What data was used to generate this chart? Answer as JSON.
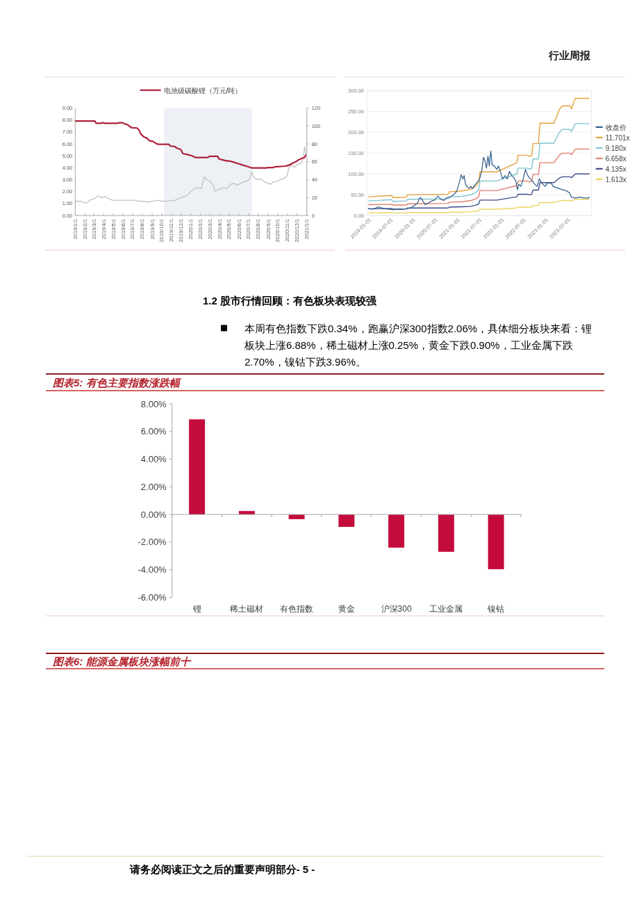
{
  "chart_data": [
    {
      "type": "other",
      "annotations": [
        "行业周报"
      ]
    },
    {
      "type": "line",
      "xlim": [
        "2019-01-01",
        "2021-01-01"
      ],
      "xticks": [
        {
          "value": "2019-01-01",
          "label": "2019/1/1"
        },
        {
          "value": "2019-02-01",
          "label": "2019/2/1"
        },
        {
          "value": "2019-03-01",
          "label": "2019/3/1"
        },
        {
          "value": "2019-04-01",
          "label": "2019/4/1"
        },
        {
          "value": "2019-05-01",
          "label": "2019/5/1"
        },
        {
          "value": "2019-06-01",
          "label": "2019/6/1"
        },
        {
          "value": "2019-07-01",
          "label": "2019/7/1"
        },
        {
          "value": "2019-08-01",
          "label": "2019/8/1"
        },
        {
          "value": "2019-09-01",
          "label": "2019/9/1"
        },
        {
          "value": "2019-10-01",
          "label": "2019/10/1"
        },
        {
          "value": "2019-11-01",
          "label": "2019/11/1"
        },
        {
          "value": "2019-12-01",
          "label": "2019/12/1"
        },
        {
          "value": "2020-01-01",
          "label": "2020/1/1"
        },
        {
          "value": "2020-02-01",
          "label": "2020/2/1"
        },
        {
          "value": "2020-03-01",
          "label": "2020/3/1"
        },
        {
          "value": "2020-04-01",
          "label": "2020/4/1"
        },
        {
          "value": "2020-05-01",
          "label": "2020/5/1"
        },
        {
          "value": "2020-06-01",
          "label": "2020/6/1"
        },
        {
          "value": "2020-07-01",
          "label": "2020/7/1"
        },
        {
          "value": "2020-08-01",
          "label": "2020/8/1"
        },
        {
          "value": "2020-09-01",
          "label": "2020/9/1"
        },
        {
          "value": "2020-10-01",
          "label": "2020/10/1"
        },
        {
          "value": "2020-11-01",
          "label": "2020/11/1"
        },
        {
          "value": "2020-12-01",
          "label": "2020/12/1"
        },
        {
          "value": "2021-01-01",
          "label": "2021/1/1"
        }
      ],
      "ylim": [
        0,
        9
      ],
      "yticks": [
        {
          "value": 0,
          "label": "0.00"
        },
        {
          "value": 1,
          "label": "1.00"
        },
        {
          "value": 2,
          "label": "2.00"
        },
        {
          "value": 3,
          "label": "3.00"
        },
        {
          "value": 4,
          "label": "4.00"
        },
        {
          "value": 5,
          "label": "5.00"
        },
        {
          "value": 6,
          "label": "6.00"
        },
        {
          "value": 7,
          "label": "7.00"
        },
        {
          "value": 8,
          "label": "8.00"
        },
        {
          "value": 9,
          "label": "9.00"
        }
      ],
      "y2lim": [
        0,
        120
      ],
      "y2ticks": [
        0,
        20,
        40,
        60,
        80,
        100,
        120
      ],
      "legend": "top",
      "bands": [
        {
          "axis": "x",
          "from": "2019-10-08",
          "to": "2020-07-12",
          "color": "#edf1f6"
        }
      ],
      "series": [
        {
          "name": "电池级碳酸锂（万元/吨）",
          "color": "#b0203c",
          "x": [
            "2019-01-01",
            "2019-03-04",
            "2019-03-08",
            "2019-03-22",
            "2019-03-30",
            "2019-04-06",
            "2019-05-16",
            "2019-05-20",
            "2019-05-31",
            "2019-06-06",
            "2019-06-14",
            "2019-06-22",
            "2019-06-29",
            "2019-07-14",
            "2019-07-21",
            "2019-07-28",
            "2019-08-05",
            "2019-08-16",
            "2019-08-23",
            "2019-09-03",
            "2019-09-14",
            "2019-09-21",
            "2019-10-24",
            "2019-10-28",
            "2019-11-11",
            "2019-11-19",
            "2019-11-30",
            "2019-12-07",
            "2019-12-22",
            "2020-01-05",
            "2020-01-16",
            "2020-02-22",
            "2020-02-29",
            "2020-03-26",
            "2020-03-29",
            "2020-04-09",
            "2020-04-24",
            "2020-05-01",
            "2020-05-16",
            "2020-05-30",
            "2020-06-14",
            "2020-06-29",
            "2020-07-10",
            "2020-08-26",
            "2020-08-30",
            "2020-09-17",
            "2020-09-21",
            "2020-10-24",
            "2020-10-31",
            "2020-11-11",
            "2020-11-18",
            "2020-11-29",
            "2020-12-06",
            "2020-12-17",
            "2020-12-25",
            "2020-12-28"
          ],
          "values": [
            7.93,
            7.93,
            7.74,
            7.74,
            7.78,
            7.74,
            7.74,
            7.78,
            7.78,
            7.68,
            7.64,
            7.48,
            7.35,
            7.35,
            7.19,
            6.8,
            6.61,
            6.47,
            6.28,
            6.22,
            6.03,
            5.97,
            5.97,
            5.83,
            5.79,
            5.64,
            5.54,
            5.19,
            5.11,
            5.0,
            4.86,
            4.86,
            4.96,
            4.96,
            4.76,
            4.67,
            4.57,
            4.58,
            4.47,
            4.35,
            4.22,
            4.1,
            3.99,
            3.99,
            4.02,
            4.02,
            4.08,
            4.14,
            4.18,
            4.28,
            4.41,
            4.53,
            4.67,
            4.8,
            4.86,
            5.05
          ]
        },
        {
          "color": "#c4c4c4",
          "axis": "y2",
          "x": [
            "2019-01-01",
            "2019-01-19",
            "2019-01-30",
            "2019-02-10",
            "2019-02-21",
            "2019-03-04",
            "2019-03-15",
            "2019-03-26",
            "2019-04-06",
            "2019-04-17",
            "2019-04-28",
            "2019-05-09",
            "2019-05-24",
            "2019-06-07",
            "2019-06-22",
            "2019-07-06",
            "2019-07-21",
            "2019-08-05",
            "2019-08-19",
            "2019-09-03",
            "2019-09-18",
            "2019-10-02",
            "2019-10-20",
            "2019-11-04",
            "2019-11-15",
            "2019-11-30",
            "2019-12-11",
            "2019-12-22",
            "2020-01-02",
            "2020-01-12",
            "2020-01-27",
            "2020-02-03",
            "2020-02-11",
            "2020-02-14",
            "2020-02-19",
            "2020-02-29",
            "2020-03-11",
            "2020-03-18",
            "2020-03-26",
            "2020-04-06",
            "2020-04-16",
            "2020-04-24",
            "2020-05-05",
            "2020-05-16",
            "2020-05-27",
            "2020-06-07",
            "2020-06-18",
            "2020-06-29",
            "2020-07-06",
            "2020-07-11",
            "2020-07-17",
            "2020-07-28",
            "2020-08-08",
            "2020-08-19",
            "2020-08-30",
            "2020-09-10",
            "2020-09-17",
            "2020-09-28",
            "2020-10-09",
            "2020-10-24",
            "2020-10-31",
            "2020-11-06",
            "2020-11-14",
            "2020-11-22",
            "2020-11-29",
            "2020-12-06",
            "2020-12-14",
            "2020-12-21",
            "2020-12-25",
            "2020-12-28",
            "2020-12-31"
          ],
          "values": [
            16,
            16,
            14,
            15,
            18,
            19,
            22,
            20,
            21,
            19,
            17,
            17,
            17,
            17,
            17,
            17,
            16,
            16,
            15,
            16,
            17,
            16,
            16,
            17,
            17,
            20,
            21,
            23,
            27,
            30,
            31,
            30,
            42,
            43,
            40,
            39,
            34,
            27,
            29,
            30,
            31,
            30,
            35,
            36,
            34,
            36,
            38,
            39,
            42,
            49,
            43,
            40,
            41,
            38,
            36,
            35,
            38,
            38,
            40,
            42,
            45,
            54,
            56,
            54,
            56,
            58,
            58,
            65,
            77,
            71,
            66
          ]
        }
      ]
    },
    {
      "type": "line",
      "xlim": [
        "2018-12-04",
        "2024-01-01"
      ],
      "xticks": [
        "2019-01-01",
        "2019-07-01",
        "2020-01-01",
        "2020-07-01",
        "2021-01-01",
        "2021-07-01",
        "2022-01-01",
        "2022-07-01",
        "2023-01-01",
        "2023-07-01"
      ],
      "ylim": [
        0,
        300
      ],
      "yticks": [
        {
          "value": 0,
          "label": "0.00"
        },
        {
          "value": 50,
          "label": "50.00"
        },
        {
          "value": 100,
          "label": "100.00"
        },
        {
          "value": 150,
          "label": "150.00"
        },
        {
          "value": 200,
          "label": "200.00"
        },
        {
          "value": 250,
          "label": "250.00"
        },
        {
          "value": 300,
          "label": "300.00"
        }
      ],
      "grid": "y",
      "legend": "right",
      "x": [
        "2018-12-20",
        "2019-06-28",
        "2019-07-08",
        "2019-10-28",
        "2019-11-05",
        "2020-10-05",
        "2020-10-15",
        "2021-01-25",
        "2021-04-10",
        "2021-05-20",
        "2021-06-15",
        "2021-06-25",
        "2021-11-10",
        "2022-04-25",
        "2022-05-05",
        "2022-07-20",
        "2022-08-05",
        "2022-08-25",
        "2022-09-05",
        "2022-10-20",
        "2022-11-01",
        "2023-02-25",
        "2023-04-10",
        "2023-05-05",
        "2023-07-05",
        "2023-07-20",
        "2023-08-20",
        "2023-12-14"
      ],
      "series": [
        {
          "name": "收盘价",
          "color": "#2e5c8a",
          "x": [
            "2018-12-18",
            "2019-01-20",
            "2019-02-17",
            "2019-03-06",
            "2019-03-25",
            "2019-04-14",
            "2019-05-02",
            "2019-06-10",
            "2019-07-08",
            "2019-08-16",
            "2019-09-23",
            "2019-10-31",
            "2019-11-29",
            "2019-12-27",
            "2020-01-25",
            "2020-02-13",
            "2020-02-22",
            "2020-03-12",
            "2020-03-31",
            "2020-04-19",
            "2020-05-17",
            "2020-06-15",
            "2020-07-13",
            "2020-08-02",
            "2020-08-31",
            "2020-09-19",
            "2020-10-17",
            "2020-11-15",
            "2020-12-13",
            "2021-01-02",
            "2021-01-21",
            "2021-02-03",
            "2021-02-14",
            "2021-02-26",
            "2021-03-08",
            "2021-03-27",
            "2021-04-11",
            "2021-04-24",
            "2021-05-13",
            "2021-06-02",
            "2021-06-20",
            "2021-07-09",
            "2021-07-24",
            "2021-08-07",
            "2021-08-17",
            "2021-08-30",
            "2021-09-10",
            "2021-09-22",
            "2021-10-03",
            "2021-10-22",
            "2021-11-10",
            "2021-11-25",
            "2021-12-09",
            "2021-12-28",
            "2022-01-17",
            "2022-02-04",
            "2022-02-23",
            "2022-03-13",
            "2022-04-01",
            "2022-04-20",
            "2022-04-29",
            "2022-05-13",
            "2022-05-28",
            "2022-06-16",
            "2022-07-05",
            "2022-07-24",
            "2022-08-12",
            "2022-09-01",
            "2022-09-20",
            "2022-10-09",
            "2022-10-27",
            "2022-11-16",
            "2022-12-14",
            "2023-01-03",
            "2023-02-01",
            "2023-02-19",
            "2023-03-09",
            "2023-04-07",
            "2023-05-05",
            "2023-06-03",
            "2023-07-01",
            "2023-07-20",
            "2023-08-18",
            "2023-09-25",
            "2023-11-02",
            "2023-12-01",
            "2023-12-14"
          ],
          "values": [
            17,
            15,
            18,
            21,
            19,
            18,
            16,
            15,
            14,
            15,
            15,
            16,
            18,
            23,
            29,
            42,
            43,
            34,
            26,
            29,
            34,
            37,
            47,
            40,
            36,
            42,
            44,
            49,
            57,
            75,
            98,
            88,
            96,
            75,
            70,
            65,
            70,
            65,
            73,
            80,
            86,
            106,
            140,
            130,
            114,
            143,
            119,
            155,
            122,
            119,
            111,
            119,
            106,
            88,
            96,
            88,
            106,
            96,
            91,
            80,
            62,
            75,
            70,
            88,
            111,
            96,
            88,
            83,
            75,
            70,
            88,
            78,
            70,
            78,
            78,
            70,
            68,
            65,
            62,
            60,
            55,
            44,
            42,
            44,
            42,
            42,
            44
          ]
        },
        {
          "name": "11.701x",
          "color": "#e3a23b",
          "values": [
            45,
            48,
            43,
            44,
            50,
            51,
            57,
            59,
            63,
            70,
            80,
            105,
            105,
            127,
            145,
            145,
            143,
            144,
            173,
            173,
            222,
            222,
            255,
            264,
            264,
            257,
            282,
            282
          ]
        },
        {
          "name": "9.180x",
          "color": "#7fc4d0",
          "values": [
            35,
            38,
            34,
            35,
            39,
            40,
            45,
            46,
            50,
            55,
            62,
            83,
            83,
            100,
            114,
            114,
            112,
            113,
            136,
            136,
            174,
            174,
            200,
            207,
            207,
            202,
            221,
            221
          ]
        },
        {
          "name": "6.658x",
          "color": "#e27d6c",
          "values": [
            26,
            27,
            25,
            25,
            28,
            29,
            32,
            33,
            36,
            40,
            45,
            60,
            60,
            72,
            83,
            83,
            81,
            82,
            99,
            99,
            127,
            127,
            145,
            150,
            150,
            146,
            160,
            160
          ]
        },
        {
          "name": "4.135x",
          "color": "#404c8c",
          "values": [
            16,
            17,
            15,
            16,
            18,
            18,
            20,
            21,
            22,
            25,
            28,
            37,
            37,
            45,
            51,
            51,
            50,
            51,
            61,
            61,
            79,
            79,
            90,
            93,
            93,
            91,
            100,
            100
          ]
        },
        {
          "name": "1.613x",
          "color": "#ecd361",
          "values": [
            6,
            7,
            6,
            6,
            7,
            7,
            8,
            8,
            9,
            10,
            11,
            15,
            15,
            18,
            20,
            20,
            20,
            20,
            24,
            24,
            31,
            31,
            35,
            36,
            36,
            35,
            39,
            39
          ]
        }
      ]
    },
    {
      "type": "other",
      "title": "1.2 股市行情回顾：有色板块表现较强",
      "annotations": [
        "本周有色指数下跌0.34%，跑赢沪深300指数2.06%，具体细分板块来看：锂板块上涨6.88%，稀土磁材上涨0.25%，黄金下跌0.90%，工业金属下跌2.70%，镍钴下跌3.96%。"
      ]
    },
    {
      "type": "bar",
      "title": "图表5: 有色主要指数涨跌幅",
      "categories": [
        "锂",
        "稀土磁材",
        "有色指数",
        "黄金",
        "沪深300",
        "工业金属",
        "镍钴"
      ],
      "values": [
        6.88,
        0.25,
        -0.34,
        -0.9,
        -2.4,
        -2.7,
        -3.96
      ],
      "color": "#c40c3c",
      "ylim": [
        -6,
        8
      ],
      "yticks": [
        {
          "value": -6,
          "label": "-6.00%"
        },
        {
          "value": -4,
          "label": "-4.00%"
        },
        {
          "value": -2,
          "label": "-2.00%"
        },
        {
          "value": 0,
          "label": "0.00%"
        },
        {
          "value": 2,
          "label": "2.00%"
        },
        {
          "value": 4,
          "label": "4.00%"
        },
        {
          "value": 6,
          "label": "6.00%"
        },
        {
          "value": 8,
          "label": "8.00%"
        }
      ]
    },
    {
      "type": "other",
      "title": "图表6: 能源金属板块涨幅前十",
      "annotations": [
        "请务必阅读正文之后的重要声明部分- 5 -"
      ]
    }
  ]
}
